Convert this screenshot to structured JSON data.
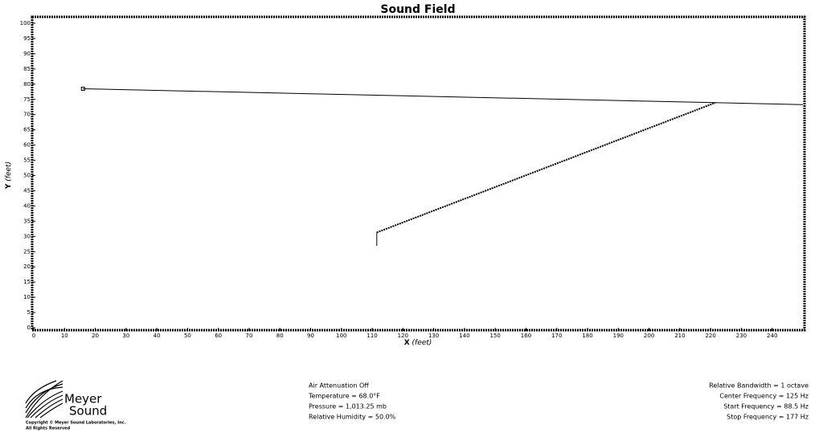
{
  "chart_data": {
    "type": "line",
    "title": "Sound Field",
    "x_label": "X",
    "x_unit": "(feet)",
    "y_label": "Y",
    "y_unit": "(feet)",
    "xlim": [
      0,
      250
    ],
    "ylim": [
      0,
      100
    ],
    "xticks": [
      0,
      10,
      20,
      30,
      40,
      50,
      60,
      70,
      80,
      90,
      100,
      110,
      120,
      130,
      140,
      150,
      160,
      170,
      180,
      190,
      200,
      210,
      220,
      230,
      240
    ],
    "yticks": [
      0,
      5,
      10,
      15,
      20,
      25,
      30,
      35,
      40,
      45,
      50,
      55,
      60,
      65,
      70,
      75,
      80,
      85,
      90,
      95,
      100
    ],
    "series": [
      {
        "color": "#000000",
        "style": "solid",
        "marker": "square",
        "x": [
          16,
          250
        ],
        "values": [
          78.5,
          73.3
        ]
      },
      {
        "color": "#000000",
        "style": "dotted",
        "x": [
          111.5,
          221.5
        ],
        "values": [
          31.3,
          73.9
        ]
      },
      {
        "color": "#000000",
        "style": "solid",
        "x": [
          111.5,
          111.5
        ],
        "values": [
          31.3,
          26.9
        ]
      }
    ]
  },
  "footer": {
    "logo": {
      "line1": "Meyer",
      "line2": "Sound",
      "copyright": "Copyright © Meyer Sound Laboratories, Inc.",
      "rights": "All Rights Reserved"
    },
    "conditions": [
      "Air Attenuation Off",
      "Temperature = 68.0°F",
      "Pressure = 1,013.25  mb",
      "Relative Humidity = 50.0%"
    ],
    "frequency": [
      "Relative Bandwidth = 1 octave",
      "Center Frequency = 125 Hz",
      "Start Frequency = 88.5 Hz",
      "Stop Frequency = 177 Hz"
    ]
  }
}
